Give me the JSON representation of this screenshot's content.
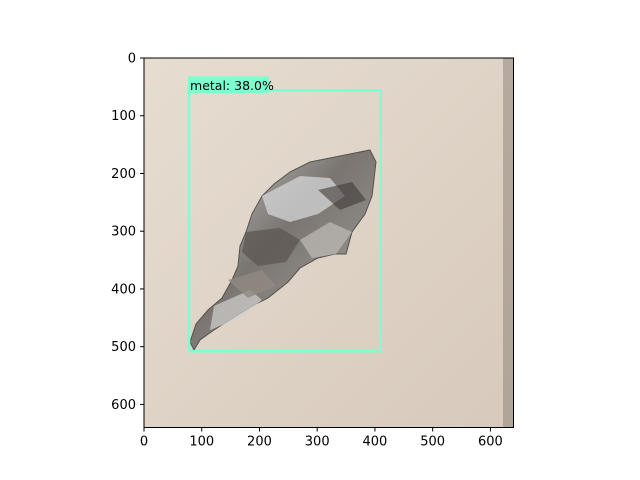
{
  "image_extent": {
    "x": [
      0,
      640
    ],
    "y": [
      0,
      640
    ]
  },
  "axes": {
    "x_ticks": [
      0,
      100,
      200,
      300,
      400,
      500,
      600
    ],
    "y_ticks": [
      0,
      100,
      200,
      300,
      400,
      500,
      600
    ],
    "y_inverted": true
  },
  "detection": {
    "label": "metal: 38.0%",
    "box": {
      "x_min": 78,
      "y_min": 56,
      "x_max": 410,
      "y_max": 508
    },
    "color": "#7dffcf"
  },
  "colors": {
    "background": "#e2d7ca",
    "object": "#8e8b86",
    "spine": "#000000"
  }
}
